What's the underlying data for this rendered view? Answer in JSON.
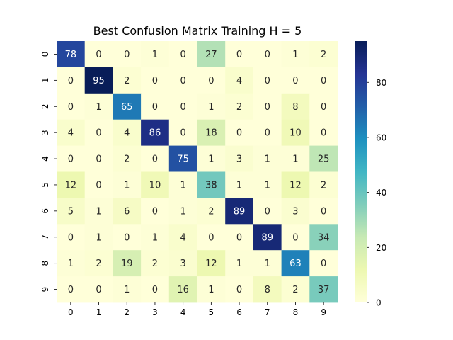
{
  "chart_data": {
    "type": "heatmap",
    "title": "Best Confusion Matrix Training H = 5",
    "xlabel": "",
    "ylabel": "",
    "x_categories": [
      "0",
      "1",
      "2",
      "3",
      "4",
      "5",
      "6",
      "7",
      "8",
      "9"
    ],
    "y_categories": [
      "0",
      "1",
      "2",
      "3",
      "4",
      "5",
      "6",
      "7",
      "8",
      "9"
    ],
    "values": [
      [
        78,
        0,
        0,
        1,
        0,
        27,
        0,
        0,
        1,
        2
      ],
      [
        0,
        95,
        2,
        0,
        0,
        0,
        4,
        0,
        0,
        0
      ],
      [
        0,
        1,
        65,
        0,
        0,
        1,
        2,
        0,
        8,
        0
      ],
      [
        4,
        0,
        4,
        86,
        0,
        18,
        0,
        0,
        10,
        0
      ],
      [
        0,
        0,
        2,
        0,
        75,
        1,
        3,
        1,
        1,
        25
      ],
      [
        12,
        0,
        1,
        10,
        1,
        38,
        1,
        1,
        12,
        2
      ],
      [
        5,
        1,
        6,
        0,
        1,
        2,
        89,
        0,
        3,
        0
      ],
      [
        0,
        1,
        0,
        1,
        4,
        0,
        0,
        89,
        0,
        34
      ],
      [
        1,
        2,
        19,
        2,
        3,
        12,
        1,
        1,
        63,
        0
      ],
      [
        0,
        0,
        1,
        0,
        16,
        1,
        0,
        8,
        2,
        37
      ]
    ],
    "colormap": "YlGnBu",
    "vmin": 0,
    "vmax": 95,
    "colorbar_ticks": [
      "0",
      "20",
      "40",
      "60",
      "80"
    ],
    "colorbar_tick_values": [
      0,
      20,
      40,
      60,
      80
    ]
  }
}
